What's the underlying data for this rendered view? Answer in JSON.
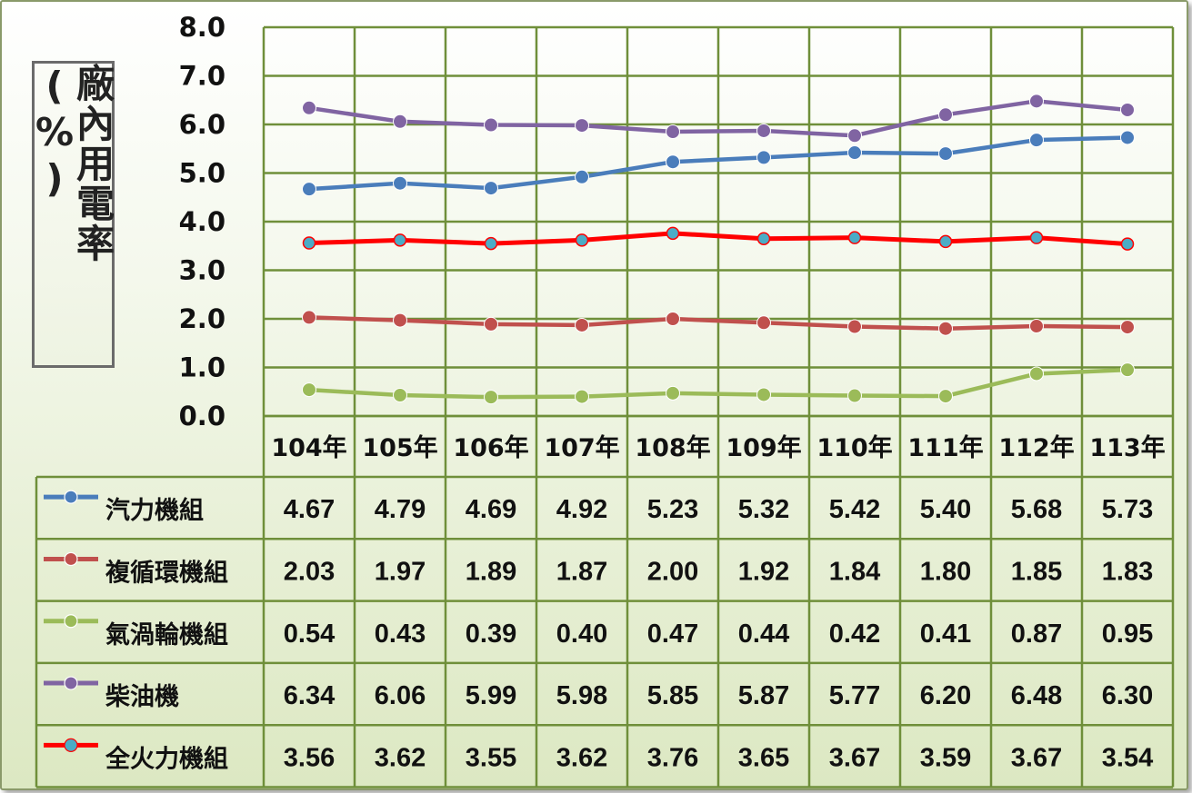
{
  "chart_data": {
    "type": "line",
    "ylabel": "廠內用電率(%)",
    "ylim": [
      0,
      8
    ],
    "yticks": [
      "0.0",
      "1.0",
      "2.0",
      "3.0",
      "4.0",
      "5.0",
      "6.0",
      "7.0",
      "8.0"
    ],
    "grid": true,
    "legend_placement": "data-table",
    "categories": [
      "104年",
      "105年",
      "106年",
      "107年",
      "108年",
      "109年",
      "110年",
      "111年",
      "112年",
      "113年"
    ],
    "series": [
      {
        "name": "汽力機組",
        "color": "#4a7dbb",
        "marker": "#4a7dbb",
        "values": [
          4.67,
          4.79,
          4.69,
          4.92,
          5.23,
          5.32,
          5.42,
          5.4,
          5.68,
          5.73
        ],
        "labels": [
          "4.67",
          "4.79",
          "4.69",
          "4.92",
          "5.23",
          "5.32",
          "5.42",
          "5.40",
          "5.68",
          "5.73"
        ]
      },
      {
        "name": "複循環機組",
        "color": "#c0504d",
        "marker": "#c0504d",
        "values": [
          2.03,
          1.97,
          1.89,
          1.87,
          2.0,
          1.92,
          1.84,
          1.8,
          1.85,
          1.83
        ],
        "labels": [
          "2.03",
          "1.97",
          "1.89",
          "1.87",
          "2.00",
          "1.92",
          "1.84",
          "1.80",
          "1.85",
          "1.83"
        ]
      },
      {
        "name": "氣渦輪機組",
        "color": "#9bbb59",
        "marker": "#9bbb59",
        "values": [
          0.54,
          0.43,
          0.39,
          0.4,
          0.47,
          0.44,
          0.42,
          0.41,
          0.87,
          0.95
        ],
        "labels": [
          "0.54",
          "0.43",
          "0.39",
          "0.40",
          "0.47",
          "0.44",
          "0.42",
          "0.41",
          "0.87",
          "0.95"
        ]
      },
      {
        "name": "柴油機",
        "color": "#8064a2",
        "marker": "#8064a2",
        "values": [
          6.34,
          6.06,
          5.99,
          5.98,
          5.85,
          5.87,
          5.77,
          6.2,
          6.48,
          6.3
        ],
        "labels": [
          "6.34",
          "6.06",
          "5.99",
          "5.98",
          "5.85",
          "5.87",
          "5.77",
          "6.20",
          "6.48",
          "6.30"
        ]
      },
      {
        "name": "全火力機組",
        "color": "#ff0000",
        "marker": "#4bacc6",
        "values": [
          3.56,
          3.62,
          3.55,
          3.62,
          3.76,
          3.65,
          3.67,
          3.59,
          3.67,
          3.54
        ],
        "labels": [
          "3.56",
          "3.62",
          "3.55",
          "3.62",
          "3.76",
          "3.65",
          "3.67",
          "3.59",
          "3.67",
          "3.54"
        ]
      }
    ]
  }
}
